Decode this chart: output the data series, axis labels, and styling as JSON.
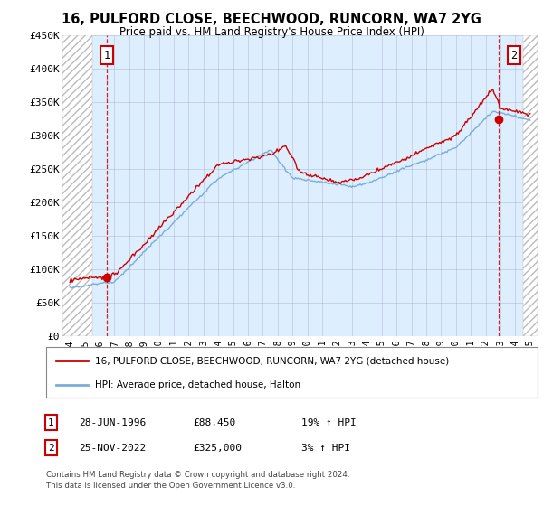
{
  "title": "16, PULFORD CLOSE, BEECHWOOD, RUNCORN, WA7 2YG",
  "subtitle": "Price paid vs. HM Land Registry's House Price Index (HPI)",
  "background_color": "#ffffff",
  "plot_bg_color": "#ddeeff",
  "sale1": {
    "date_num": 1996.49,
    "price": 88450,
    "label": "1",
    "date_str": "28-JUN-1996",
    "pct": "19%"
  },
  "sale2": {
    "date_num": 2022.9,
    "price": 325000,
    "label": "2",
    "date_str": "25-NOV-2022",
    "pct": "3%"
  },
  "hpi_line_color": "#7aadda",
  "price_line_color": "#cc0000",
  "dashed_line_color": "#cc0000",
  "ylim": [
    0,
    450000
  ],
  "yticks": [
    0,
    50000,
    100000,
    150000,
    200000,
    250000,
    300000,
    350000,
    400000,
    450000
  ],
  "ytick_labels": [
    "£0",
    "£50K",
    "£100K",
    "£150K",
    "£200K",
    "£250K",
    "£300K",
    "£350K",
    "£400K",
    "£450K"
  ],
  "xlim_start": 1993.5,
  "xlim_end": 2025.5,
  "xticks": [
    1994,
    1995,
    1996,
    1997,
    1998,
    1999,
    2000,
    2001,
    2002,
    2003,
    2004,
    2005,
    2006,
    2007,
    2008,
    2009,
    2010,
    2011,
    2012,
    2013,
    2014,
    2015,
    2016,
    2017,
    2018,
    2019,
    2020,
    2021,
    2022,
    2023,
    2024,
    2025
  ],
  "legend_label1": "16, PULFORD CLOSE, BEECHWOOD, RUNCORN, WA7 2YG (detached house)",
  "legend_label2": "HPI: Average price, detached house, Halton",
  "footer1": "Contains HM Land Registry data © Crown copyright and database right 2024.",
  "footer2": "This data is licensed under the Open Government Licence v3.0.",
  "hatch_end": 1995.5
}
